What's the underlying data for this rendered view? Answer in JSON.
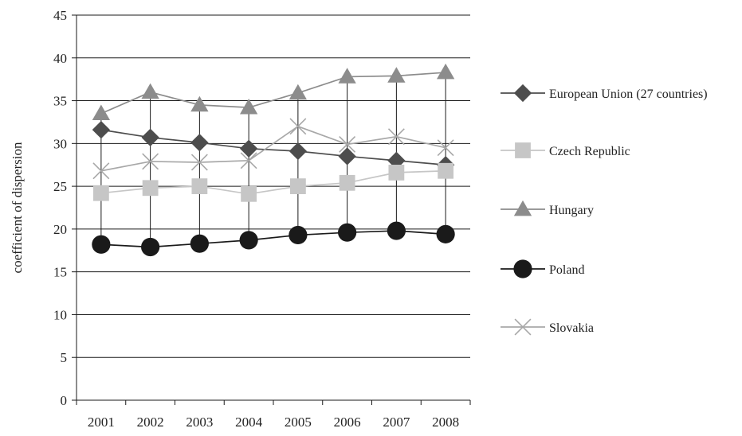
{
  "chart_data": {
    "type": "line",
    "title": "",
    "xlabel": "",
    "ylabel": "coefficient of dispersion",
    "categories": [
      "2001",
      "2002",
      "2003",
      "2004",
      "2005",
      "2006",
      "2007",
      "2008"
    ],
    "ylim": [
      0,
      45
    ],
    "yticks": [
      0,
      5,
      10,
      15,
      20,
      25,
      30,
      35,
      40,
      45
    ],
    "grid": true,
    "legend_position": "right",
    "series": [
      {
        "name": "European Union (27 countries)",
        "values": [
          31.6,
          30.7,
          30.1,
          29.4,
          29.1,
          28.5,
          28.0,
          27.5
        ],
        "color": "#4d4d4d",
        "marker": "diamond"
      },
      {
        "name": "Czech Republic",
        "values": [
          24.2,
          24.8,
          25.0,
          24.1,
          25.0,
          25.4,
          26.6,
          26.8
        ],
        "color": "#c6c6c6",
        "marker": "square"
      },
      {
        "name": "Hungary",
        "values": [
          33.5,
          36.0,
          34.5,
          34.2,
          35.9,
          37.8,
          37.9,
          38.3
        ],
        "color": "#8c8c8c",
        "marker": "triangle"
      },
      {
        "name": "Poland",
        "values": [
          18.2,
          17.9,
          18.3,
          18.7,
          19.3,
          19.6,
          19.8,
          19.4
        ],
        "color": "#1a1a1a",
        "marker": "circle"
      },
      {
        "name": "Slovakia",
        "values": [
          26.8,
          27.9,
          27.8,
          28.0,
          32.0,
          29.9,
          30.8,
          29.5
        ],
        "color": "#a8a8a8",
        "marker": "x"
      }
    ]
  }
}
